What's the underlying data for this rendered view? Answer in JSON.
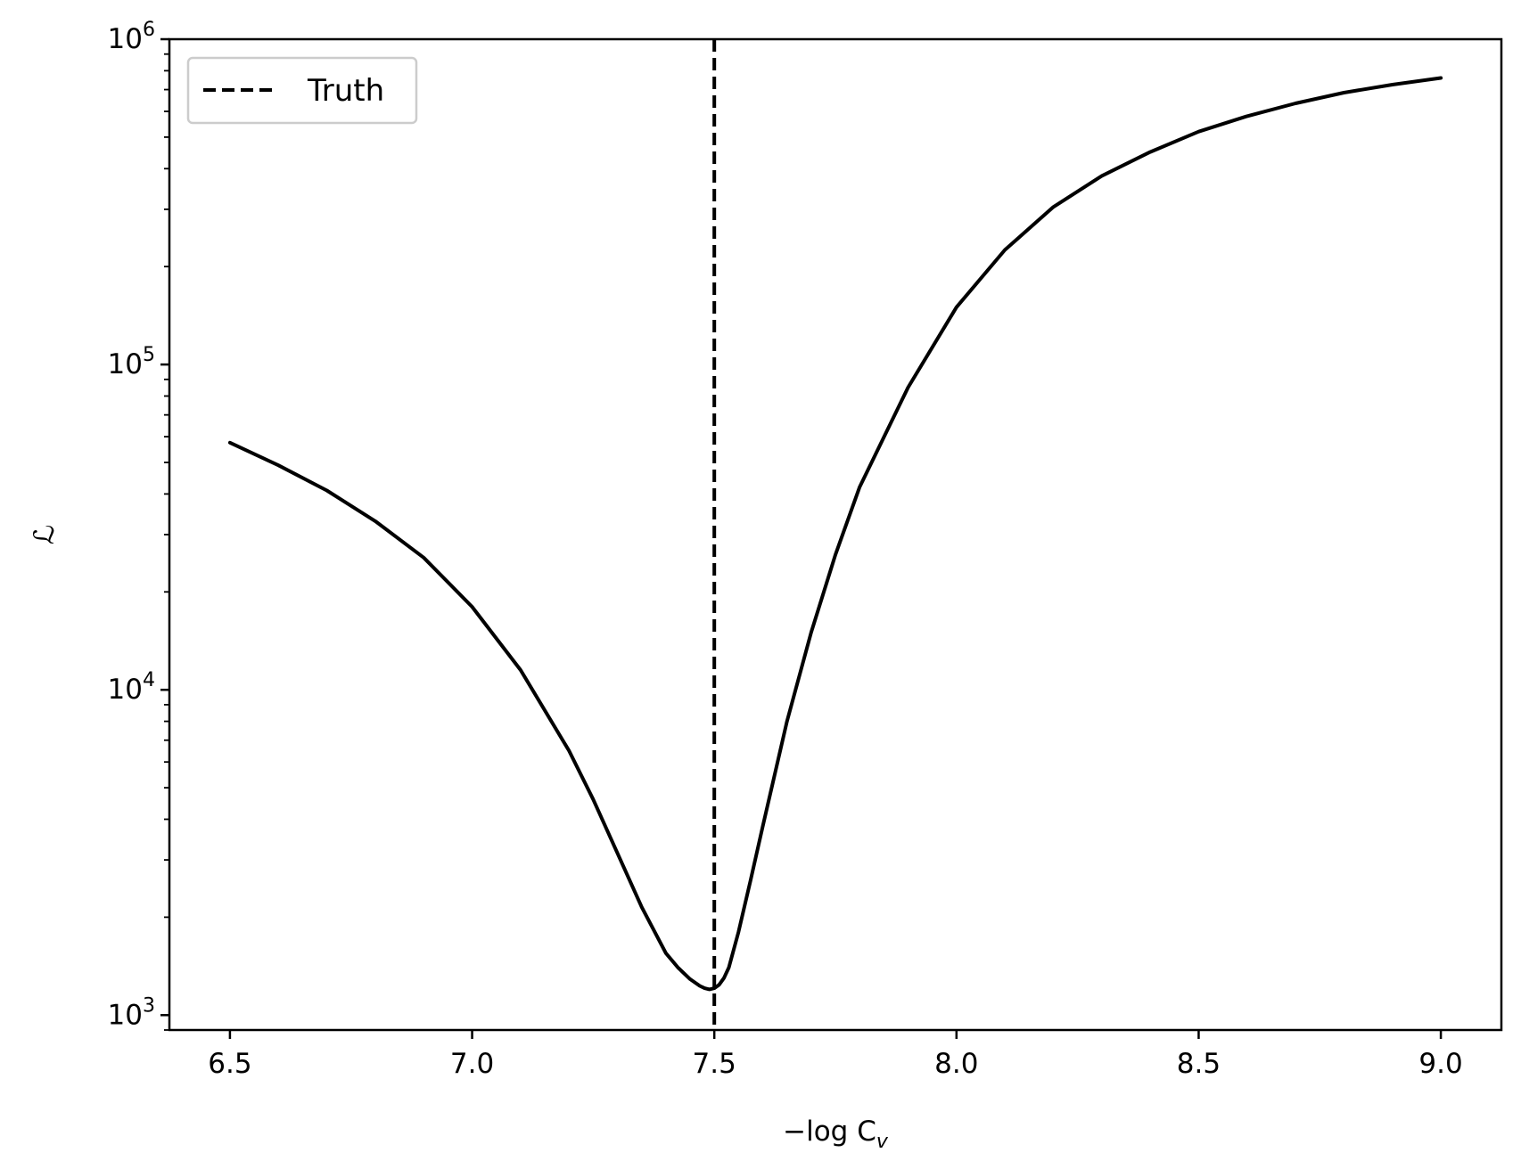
{
  "chart_data": {
    "type": "line",
    "title": "",
    "xlabel": "−log C",
    "xlabel_sub": "v",
    "ylabel": "ℒ",
    "yscale": "log",
    "xlim": [
      6.375,
      9.125
    ],
    "ylim": [
      900,
      1000000
    ],
    "xticks": [
      6.5,
      7.0,
      7.5,
      8.0,
      8.5,
      9.0
    ],
    "xtick_labels": [
      "6.5",
      "7.0",
      "7.5",
      "8.0",
      "8.5",
      "9.0"
    ],
    "yticks": [
      1000,
      10000,
      100000,
      1000000
    ],
    "ytick_labels": [
      {
        "base": "10",
        "exp": "3"
      },
      {
        "base": "10",
        "exp": "4"
      },
      {
        "base": "10",
        "exp": "5"
      },
      {
        "base": "10",
        "exp": "6"
      }
    ],
    "grid": false,
    "legend": {
      "placement": "top-left"
    },
    "series": [
      {
        "name": "",
        "style": "solid",
        "color": "#000000",
        "x": [
          6.5,
          6.6,
          6.7,
          6.8,
          6.9,
          7.0,
          7.1,
          7.2,
          7.25,
          7.3,
          7.35,
          7.4,
          7.425,
          7.45,
          7.47,
          7.48,
          7.49,
          7.5,
          7.51,
          7.52,
          7.53,
          7.55,
          7.575,
          7.6,
          7.65,
          7.7,
          7.75,
          7.8,
          7.9,
          8.0,
          8.1,
          8.2,
          8.3,
          8.4,
          8.5,
          8.6,
          8.7,
          8.8,
          8.9,
          9.0
        ],
        "y": [
          57500,
          49000,
          41000,
          33000,
          25500,
          18000,
          11500,
          6500,
          4600,
          3150,
          2150,
          1550,
          1400,
          1290,
          1230,
          1210,
          1200,
          1210,
          1240,
          1300,
          1400,
          1800,
          2600,
          3800,
          8000,
          15000,
          26000,
          42000,
          85000,
          150000,
          225000,
          305000,
          380000,
          450000,
          520000,
          580000,
          635000,
          685000,
          725000,
          760000
        ]
      },
      {
        "name": "Truth",
        "style": "dashed",
        "color": "#000000",
        "vline_x": 7.5
      }
    ]
  }
}
